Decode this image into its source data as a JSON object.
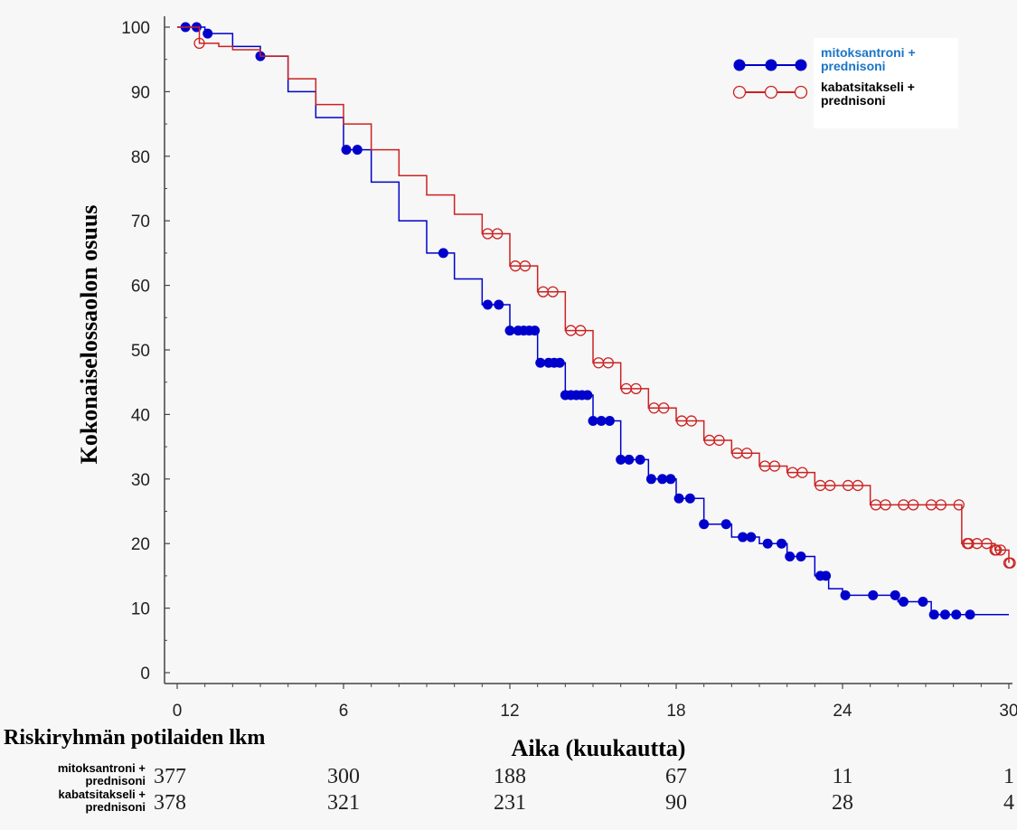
{
  "chart_data": {
    "type": "line",
    "subtype": "kaplan-meier",
    "xlabel": "Aika (kuukautta)",
    "ylabel": "Kokonaiselossaolon osuus",
    "xlim": [
      0,
      30
    ],
    "ylim": [
      0,
      100
    ],
    "xticks": [
      0,
      6,
      12,
      18,
      24,
      30
    ],
    "xtick_labels": [
      "0",
      "6",
      "12",
      "18",
      "24",
      "30"
    ],
    "yticks": [
      0,
      10,
      20,
      30,
      40,
      50,
      60,
      70,
      80,
      90,
      100
    ],
    "ytick_labels": [
      "0",
      "10",
      "20",
      "30",
      "40",
      "50",
      "60",
      "70",
      "80",
      "90",
      "100"
    ],
    "grid": false,
    "legend_position": "top-right",
    "series": [
      {
        "name": "mitoksantroni + prednisoni",
        "legend_lines": [
          "mitoksantroni +",
          "prednisoni"
        ],
        "color": "#0000cc",
        "legend_text_color": "#1a75c8",
        "marker": "filled-circle",
        "x": [
          0,
          0.5,
          1,
          2,
          3,
          4,
          5,
          6,
          7,
          8,
          9,
          10,
          11,
          12,
          13,
          14,
          15,
          16,
          17,
          18,
          19,
          20,
          21,
          22,
          23,
          23.5,
          24,
          25,
          26,
          27,
          27.2,
          28,
          29,
          30
        ],
        "y": [
          100,
          100,
          99,
          97,
          95.5,
          90,
          86,
          81,
          76,
          70,
          65,
          61,
          57,
          53,
          48,
          43,
          39,
          33,
          30,
          27,
          23,
          21,
          20,
          18,
          15,
          13,
          12,
          12,
          11,
          11,
          9,
          9,
          9,
          9
        ],
        "censored_x": [
          0.3,
          0.7,
          1.1,
          3,
          6.1,
          6.5,
          9.6,
          11.2,
          11.6,
          12,
          12.3,
          12.5,
          12.7,
          12.9,
          13.1,
          13.4,
          13.6,
          13.8,
          14.0,
          14.2,
          14.4,
          14.6,
          14.8,
          15.0,
          15.3,
          15.6,
          16.0,
          16.3,
          16.7,
          17.1,
          17.5,
          17.8,
          18.1,
          18.5,
          19.0,
          19.8,
          20.4,
          20.7,
          21.3,
          21.8,
          22.1,
          22.5,
          23.2,
          23.4,
          24.1,
          25.1,
          25.9,
          26.2,
          26.9,
          27.3,
          27.7,
          28.1,
          28.6
        ]
      },
      {
        "name": "kabatsitakseli + prednisoni",
        "legend_lines": [
          "kabatsitakseli +",
          "prednisoni"
        ],
        "color": "#cc2222",
        "legend_text_color": "#000000",
        "marker": "open-circle",
        "x": [
          0,
          0.8,
          1.5,
          2,
          3,
          4,
          5,
          6,
          7,
          8,
          9,
          10,
          11,
          12,
          13,
          14,
          15,
          16,
          17,
          18,
          19,
          20,
          21,
          22,
          23,
          24,
          25,
          26,
          27,
          28,
          28.3,
          29,
          29.5,
          30
        ],
        "y": [
          100,
          97.5,
          97,
          96.5,
          95.5,
          92,
          88,
          85,
          81,
          77,
          74,
          71,
          68,
          63,
          59,
          53,
          48,
          44,
          41,
          39,
          36,
          34,
          32,
          31,
          29,
          29,
          26,
          26,
          26,
          26,
          20,
          20,
          19,
          17
        ]
      }
    ],
    "risk_table": {
      "title": "Riskiryhmän potilaiden lkm",
      "columns_x": [
        0,
        6,
        12,
        18,
        24,
        30
      ],
      "rows": [
        {
          "name_lines": [
            "mitoksantroni +",
            "prednisoni"
          ],
          "values": [
            "377",
            "300",
            "188",
            "67",
            "11",
            "1"
          ]
        },
        {
          "name_lines": [
            "kabatsitakseli +",
            "prednisoni"
          ],
          "values": [
            "378",
            "321",
            "231",
            "90",
            "28",
            "4"
          ]
        }
      ]
    }
  }
}
